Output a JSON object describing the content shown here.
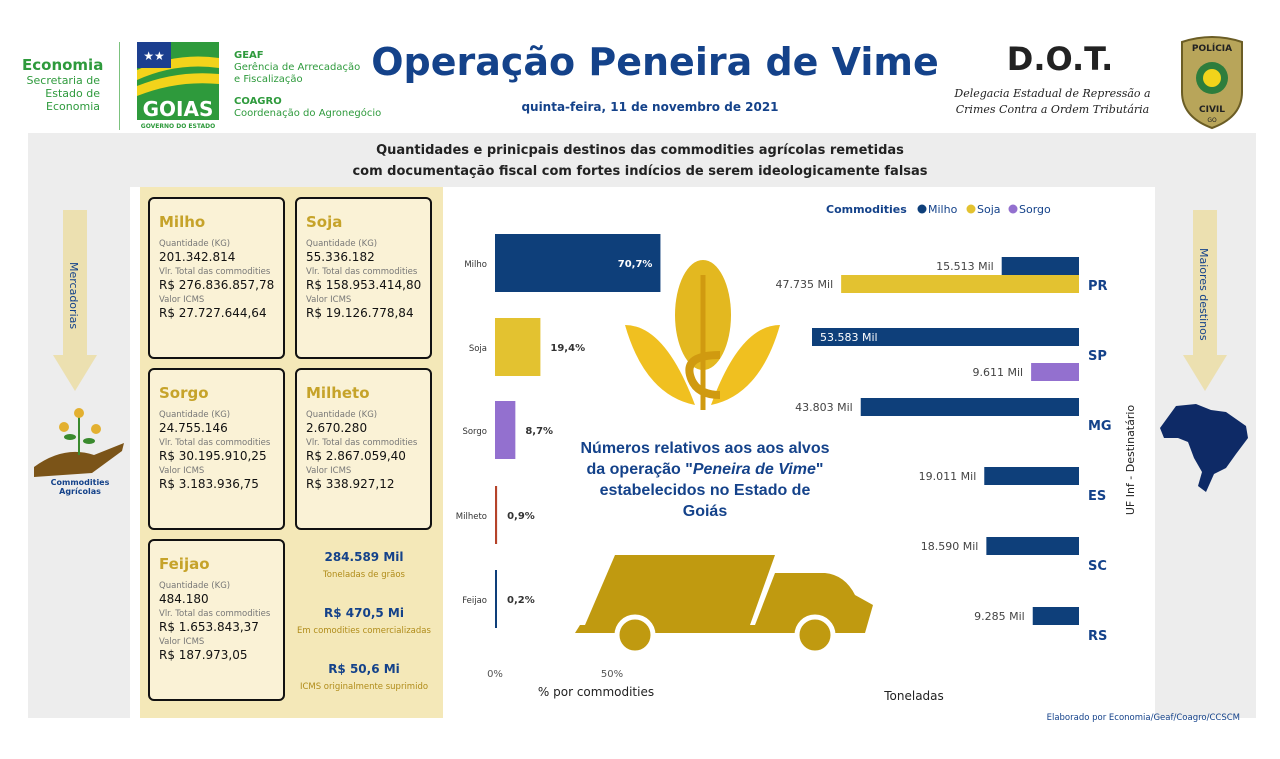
{
  "header": {
    "economia_title": "Economia",
    "economia_sub": "Secretaria de Estado de Economia",
    "goias_logo_text": "GOIAS",
    "goias_logo_sub": "GOVERNO DO ESTADO",
    "geaf_title": "GEAF",
    "geaf_sub": "Gerência de Arrecadação e Fiscalização",
    "coagro_title": "COAGRO",
    "coagro_sub": "Coordenação do Agronegócio",
    "title": "Operação Peneira de Vime",
    "date": "quinta-feira, 11 de novembro de 2021",
    "dot_title": "D.O.T.",
    "dot_sub1": "Delegacia Estadual de Repressão a",
    "dot_sub2": "Crimes Contra a Ordem Tributária",
    "badge_top": "POLÍCIA",
    "badge_bottom": "CIVIL",
    "badge_state": "GO"
  },
  "subtitle1": "Quantidades e prinicpais destinos das commodities agrícolas remetidas",
  "subtitle2": "com documentação fiscal com fortes indícios de serem ideologicamente falsas",
  "left_side": {
    "arrow_label": "Mercadorias",
    "icon_label": "Commodities Agrícolas"
  },
  "right_side": {
    "arrow_label": "Maiores destinos"
  },
  "labels": {
    "qty": "Quantidade (KG)",
    "total": "Vlr. Total das commodities",
    "icms": "Valor ICMS"
  },
  "cards": [
    {
      "name": "Milho",
      "qty": "201.342.814",
      "total": "R$ 276.836.857,78",
      "icms": "R$ 27.727.644,64"
    },
    {
      "name": "Soja",
      "qty": "55.336.182",
      "total": "R$ 158.953.414,80",
      "icms": "R$ 19.126.778,84"
    },
    {
      "name": "Sorgo",
      "qty": "24.755.146",
      "total": "R$ 30.195.910,25",
      "icms": "R$ 3.183.936,75"
    },
    {
      "name": "Milheto",
      "qty": "2.670.280",
      "total": "R$ 2.867.059,40",
      "icms": "R$ 338.927,12"
    },
    {
      "name": "Feijao",
      "qty": "484.180",
      "total": "R$ 1.653.843,37",
      "icms": "R$ 187.973,05"
    }
  ],
  "totals": [
    {
      "value": "284.589 Mil",
      "label": "Toneladas de grãos"
    },
    {
      "value": "R$ 470,5 Mi",
      "label": "Em comodities comercializadas"
    },
    {
      "value": "R$ 50,6 Mi",
      "label": "ICMS originalmente suprimido"
    }
  ],
  "note": {
    "line1": "Números relativos aos  aos alvos da operação \"",
    "italic": "Peneira de Vime",
    "line2": "\" estabelecidos no Estado de Goiás"
  },
  "credit": "Elaborado por Economia/Geaf/Coagro/CCSCM",
  "colors": {
    "milho": "#0e3f7a",
    "soja": "#e3c230",
    "sorgo": "#9370cf",
    "milheto": "#b5432a",
    "feijao": "#0e3f7a",
    "gold": "#c09a10"
  },
  "chart_data": [
    {
      "type": "bar",
      "orientation": "horizontal",
      "categories": [
        "Milho",
        "Soja",
        "Sorgo",
        "Milheto",
        "Feijao"
      ],
      "values": [
        70.7,
        19.4,
        8.7,
        0.9,
        0.2
      ],
      "value_labels": [
        "70,7%",
        "19,4%",
        "8,7%",
        "0,9%",
        "0,2%"
      ],
      "xlabel": "% por commodities",
      "xticks": [
        "0%",
        "50%"
      ],
      "xlim": [
        0,
        100
      ]
    },
    {
      "type": "bar",
      "orientation": "horizontal",
      "title": "Commodities",
      "legend": [
        "Milho",
        "Soja",
        "Sorgo"
      ],
      "categories": [
        "PR",
        "SP",
        "MG",
        "ES",
        "SC",
        "RS"
      ],
      "xlabel": "Toneladas",
      "ylabel": "UF Inf - Destinatário",
      "series": [
        {
          "name": "Milho",
          "values": [
            15513,
            53583,
            43803,
            19011,
            18590,
            9285
          ],
          "labels": [
            "15.513 Mil",
            "53.583 Mil",
            "43.803 Mil",
            "19.011 Mil",
            "18.590 Mil",
            "9.285 Mil"
          ]
        },
        {
          "name": "Soja",
          "values": [
            47735,
            null,
            null,
            null,
            null,
            null
          ],
          "labels": [
            "47.735 Mil",
            "",
            "",
            "",
            "",
            ""
          ]
        },
        {
          "name": "Sorgo",
          "values": [
            null,
            9611,
            null,
            null,
            null,
            null
          ],
          "labels": [
            "",
            "9.611 Mil",
            "",
            "",
            "",
            ""
          ]
        }
      ]
    }
  ]
}
